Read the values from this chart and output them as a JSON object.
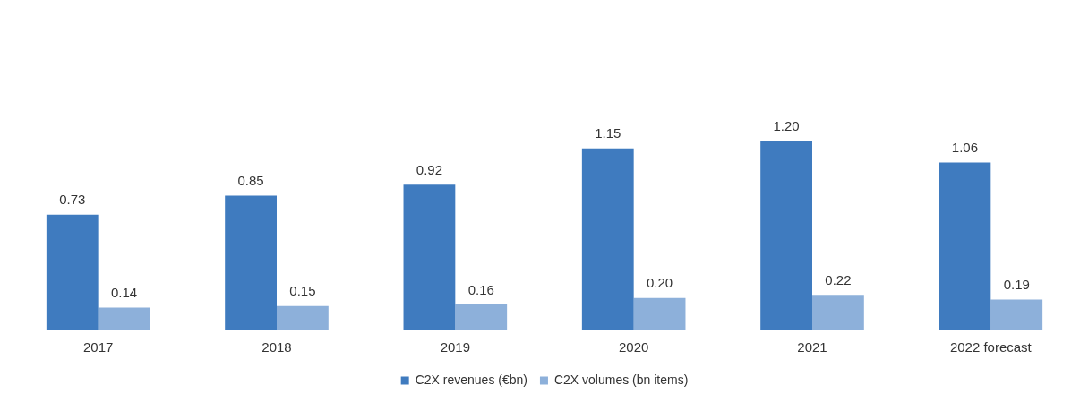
{
  "chart_data": {
    "type": "bar",
    "categories": [
      "2017",
      "2018",
      "2019",
      "2020",
      "2021",
      "2022 forecast"
    ],
    "series": [
      {
        "name": "C2X revenues (€bn)",
        "color": "#3f7bbf",
        "values": [
          0.73,
          0.85,
          0.92,
          1.15,
          1.2,
          1.06
        ],
        "value_labels": [
          "0.73",
          "0.85",
          "0.92",
          "1.15",
          "1.20",
          "1.06"
        ]
      },
      {
        "name": "C2X volumes (bn items)",
        "color": "#8db0da",
        "values": [
          0.14,
          0.15,
          0.16,
          0.2,
          0.22,
          0.19
        ],
        "value_labels": [
          "0.14",
          "0.15",
          "0.16",
          "0.20",
          "0.22",
          "0.19"
        ]
      }
    ],
    "tick_labels": "x",
    "grid": false,
    "legend": "bottom"
  }
}
